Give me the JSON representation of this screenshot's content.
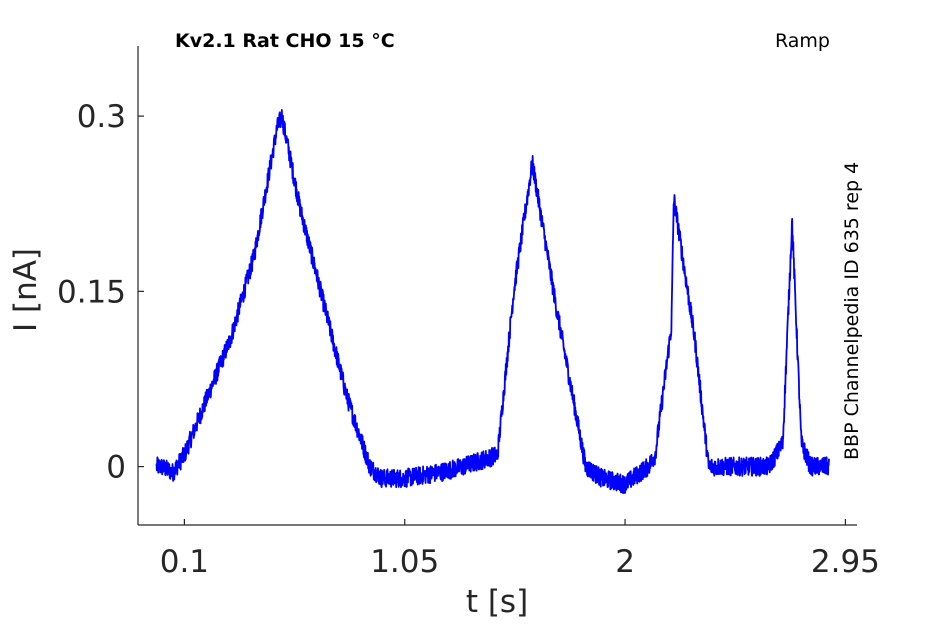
{
  "chart_data": {
    "type": "line",
    "title": "Kv2.1  Rat  CHO  15 °C",
    "protocol_label": "Ramp",
    "side_label": "BBP Channelpedia ID 635 rep 4",
    "xlabel": "t [s]",
    "ylabel": "I [nA]",
    "xlim": [
      -0.1,
      3.0
    ],
    "ylim": [
      -0.05,
      0.36
    ],
    "x_ticks": [
      0.1,
      1.05,
      2,
      2.95
    ],
    "x_tick_labels": [
      "0.1",
      "1.05",
      "2",
      "2.95"
    ],
    "y_ticks": [
      0,
      0.15,
      0.3
    ],
    "y_tick_labels": [
      "0",
      "0.15",
      "0.3"
    ],
    "grid": false,
    "line_color": "#0000ff",
    "noise_amplitude": 0.008,
    "series": [
      {
        "x": [
          -0.02,
          0.0,
          0.05,
          0.1,
          0.2,
          0.3,
          0.4,
          0.5,
          0.52,
          0.6,
          0.7,
          0.8,
          0.9,
          0.95,
          1.05,
          1.2,
          1.3,
          1.45,
          1.52,
          1.6,
          1.7,
          1.83,
          1.9,
          2.0,
          2.1,
          2.13,
          2.2,
          2.21,
          2.3,
          2.36,
          2.4,
          2.5,
          2.62,
          2.68,
          2.72,
          2.76,
          2.8,
          2.88
        ],
        "y": [
          0.0,
          0.0,
          -0.005,
          0.01,
          0.06,
          0.11,
          0.18,
          0.29,
          0.3,
          0.22,
          0.14,
          0.06,
          0.0,
          -0.01,
          -0.01,
          -0.005,
          0.0,
          0.01,
          0.15,
          0.26,
          0.14,
          0.0,
          -0.01,
          -0.015,
          0.0,
          0.01,
          0.12,
          0.23,
          0.11,
          0.0,
          0.0,
          0.0,
          0.0,
          0.02,
          0.21,
          0.02,
          0.0,
          0.0
        ]
      }
    ]
  }
}
